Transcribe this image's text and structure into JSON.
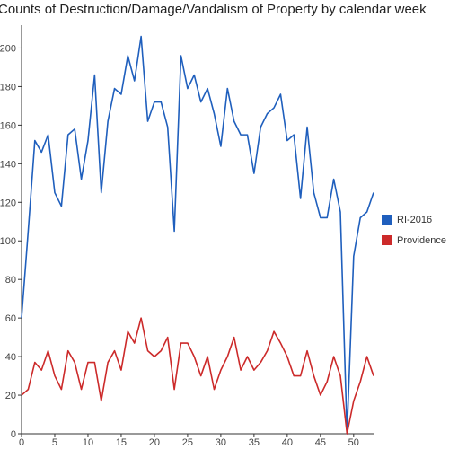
{
  "title": "Counts of Destruction/Damage/Vandalism of Property by calendar week",
  "chart_data": {
    "type": "line",
    "title": "Counts of Destruction/Damage/Vandalism of Property by calendar week",
    "xlabel": "",
    "ylabel": "",
    "xlim": [
      0,
      53
    ],
    "ylim": [
      0,
      210
    ],
    "xticks": [
      0,
      5,
      10,
      15,
      20,
      25,
      30,
      35,
      40,
      45,
      50
    ],
    "yticks": [
      0,
      20,
      40,
      60,
      80,
      100,
      120,
      140,
      160,
      180,
      200
    ],
    "grid": false,
    "legend_position": "right",
    "x": [
      0,
      1,
      2,
      3,
      4,
      5,
      6,
      7,
      8,
      9,
      10,
      11,
      12,
      13,
      14,
      15,
      16,
      17,
      18,
      19,
      20,
      21,
      22,
      23,
      24,
      25,
      26,
      27,
      28,
      29,
      30,
      31,
      32,
      33,
      34,
      35,
      36,
      37,
      38,
      39,
      40,
      41,
      42,
      43,
      44,
      45,
      46,
      47,
      48,
      49,
      50,
      51,
      52,
      53
    ],
    "series": [
      {
        "name": "RI-2016",
        "color": "#1f5fbd",
        "values": [
          60,
          105,
          152,
          146,
          155,
          125,
          118,
          155,
          158,
          132,
          152,
          186,
          125,
          162,
          179,
          176,
          196,
          183,
          206,
          162,
          172,
          172,
          159,
          105,
          196,
          179,
          186,
          172,
          179,
          166,
          149,
          179,
          162,
          155,
          155,
          135,
          159,
          166,
          169,
          176,
          152,
          155,
          122,
          159,
          125,
          112,
          112,
          132,
          115,
          0,
          92,
          112,
          115,
          125
        ]
      },
      {
        "name": "Providence",
        "color": "#cc2a2a",
        "values": [
          20,
          23,
          37,
          33,
          43,
          30,
          23,
          43,
          37,
          23,
          37,
          37,
          17,
          37,
          43,
          33,
          53,
          47,
          60,
          43,
          40,
          43,
          50,
          23,
          47,
          47,
          40,
          30,
          40,
          23,
          33,
          40,
          50,
          33,
          40,
          33,
          37,
          43,
          53,
          47,
          40,
          30,
          30,
          43,
          30,
          20,
          27,
          40,
          30,
          0,
          17,
          27,
          40,
          30
        ]
      }
    ]
  }
}
